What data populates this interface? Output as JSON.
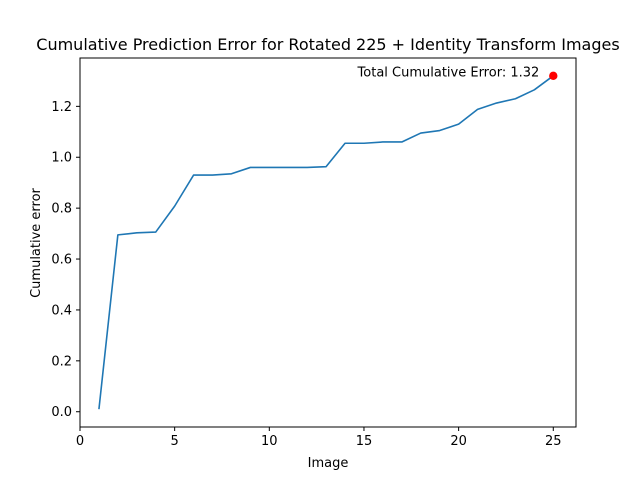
{
  "chart_data": {
    "type": "line",
    "title": "Cumulative Prediction Error for Rotated 225 + Identity Transform Images",
    "xlabel": "Image",
    "ylabel": "Cumulative error",
    "xlim": [
      0,
      26.2
    ],
    "ylim": [
      -0.06,
      1.39
    ],
    "x_ticks": [
      0,
      5,
      10,
      15,
      20,
      25
    ],
    "y_ticks": [
      0.0,
      0.2,
      0.4,
      0.6,
      0.8,
      1.0,
      1.2
    ],
    "x_tick_labels": [
      "0",
      "5",
      "10",
      "15",
      "20",
      "25"
    ],
    "y_tick_labels": [
      "0.0",
      "0.2",
      "0.4",
      "0.6",
      "0.8",
      "1.0",
      "1.2"
    ],
    "grid": false,
    "series": [
      {
        "color": "#1f77b4",
        "x": [
          1,
          2,
          3,
          4,
          5,
          6,
          7,
          8,
          9,
          10,
          11,
          12,
          13,
          14,
          15,
          16,
          17,
          18,
          19,
          20,
          21,
          22,
          23,
          24,
          25
        ],
        "y": [
          0.01,
          0.695,
          0.703,
          0.706,
          0.808,
          0.93,
          0.93,
          0.935,
          0.96,
          0.96,
          0.96,
          0.96,
          0.963,
          1.055,
          1.055,
          1.06,
          1.06,
          1.095,
          1.105,
          1.13,
          1.188,
          1.213,
          1.23,
          1.265,
          1.32
        ]
      }
    ],
    "highlight_point": {
      "x": 25,
      "y": 1.32,
      "color": "#ff0000"
    },
    "annotation": {
      "text": "Total Cumulative Error: 1.32",
      "x": 25,
      "y": 1.32
    }
  }
}
